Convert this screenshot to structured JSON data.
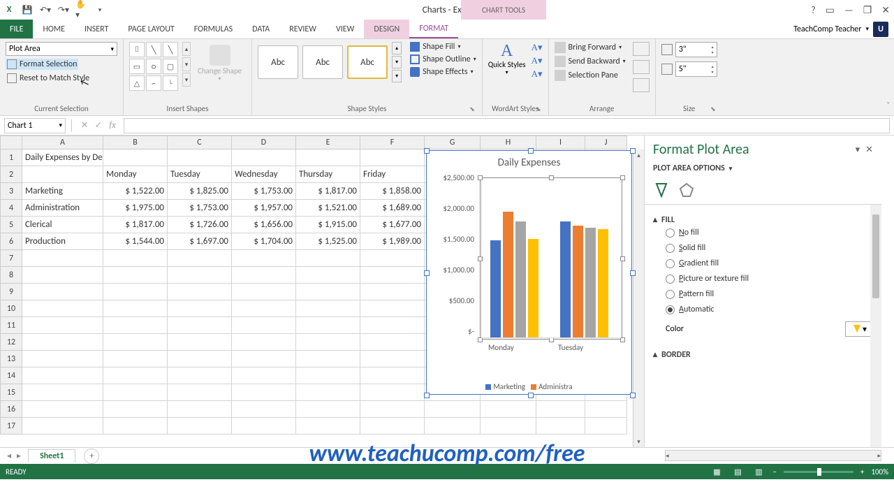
{
  "app": {
    "title": "Charts - Excel",
    "context_tool": "CHART TOOLS"
  },
  "account": {
    "name": "TeachComp Teacher",
    "avatar": "U"
  },
  "tabs": [
    "FILE",
    "HOME",
    "INSERT",
    "PAGE LAYOUT",
    "FORMULAS",
    "DATA",
    "REVIEW",
    "VIEW"
  ],
  "context_tabs": [
    "DESIGN",
    "FORMAT"
  ],
  "ribbon": {
    "selection": {
      "value": "Plot Area",
      "format": "Format Selection",
      "reset": "Reset to Match Style",
      "label": "Current Selection"
    },
    "shapes": {
      "change": "Change Shape",
      "label": "Insert Shapes"
    },
    "styles": {
      "abc": "Abc",
      "fill": "Shape Fill",
      "outline": "Shape Outline",
      "effects": "Shape Effects",
      "label": "Shape Styles"
    },
    "wordart": {
      "quick": "Quick Styles",
      "label": "WordArt Styles"
    },
    "arrange": {
      "forward": "Bring Forward",
      "backward": "Send Backward",
      "pane": "Selection Pane",
      "label": "Arrange"
    },
    "size": {
      "height": "3\"",
      "width": "5\"",
      "label": "Size"
    }
  },
  "namebox": "Chart 1",
  "columns": [
    "A",
    "B",
    "C",
    "D",
    "E",
    "F",
    "G",
    "H",
    "I",
    "J"
  ],
  "rows": 17,
  "data": {
    "title": "Daily Expenses by Department",
    "headers": [
      "",
      "Monday",
      "Tuesday",
      "Wednesday",
      "Thursday",
      "Friday"
    ],
    "rows": [
      [
        "Marketing",
        "$ 1,522.00",
        "$ 1,825.00",
        "$ 1,753.00",
        "$ 1,817.00",
        "$ 1,858.00"
      ],
      [
        "Administration",
        "$ 1,975.00",
        "$ 1,753.00",
        "$ 1,957.00",
        "$ 1,521.00",
        "$ 1,689.00"
      ],
      [
        "Clerical",
        "$ 1,817.00",
        "$ 1,726.00",
        "$ 1,656.00",
        "$ 1,915.00",
        "$ 1,677.00"
      ],
      [
        "Production",
        "$ 1,544.00",
        "$ 1,697.00",
        "$ 1,704.00",
        "$ 1,525.00",
        "$ 1,989.00"
      ]
    ]
  },
  "chart": {
    "title": "Daily Expenses",
    "ymax": 2500,
    "ystep": 500,
    "yticks": [
      "$2,500.00",
      "$2,000.00",
      "$1,500.00",
      "$1,000.00",
      "$500.00",
      "$-"
    ],
    "categories": [
      "Monday",
      "Tuesday"
    ],
    "series": [
      {
        "name": "Marketing",
        "color": "#4472c4",
        "vals": [
          1522,
          1825
        ]
      },
      {
        "name": "Administration",
        "color": "#ed7d31",
        "vals": [
          1975,
          1753
        ]
      },
      {
        "name": "Clerical",
        "color": "#a5a5a5",
        "vals": [
          1817,
          1726
        ]
      },
      {
        "name": "Production",
        "color": "#ffc000",
        "vals": [
          1544,
          1697
        ]
      }
    ],
    "legend": [
      "Marketing",
      "Administra"
    ]
  },
  "pane": {
    "title": "Format Plot Area",
    "subtitle": "PLOT AREA OPTIONS",
    "sections": {
      "fill": {
        "head": "FILL",
        "options": [
          "No fill",
          "Solid fill",
          "Gradient fill",
          "Picture or texture fill",
          "Pattern fill",
          "Automatic"
        ],
        "selected": 5,
        "color_label": "Color"
      },
      "border": {
        "head": "BORDER"
      }
    }
  },
  "sheet": {
    "name": "Sheet1"
  },
  "status": {
    "ready": "READY",
    "zoom": "100%"
  },
  "watermark": "www.teachucomp.com/free",
  "colwidths": {
    "A": 116,
    "B": 92,
    "C": 92,
    "D": 92,
    "E": 92,
    "F": 92,
    "G": 80,
    "H": 80,
    "I": 70,
    "J": 60
  }
}
